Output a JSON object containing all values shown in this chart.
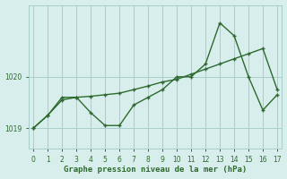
{
  "line1_x": [
    0,
    1,
    2,
    3,
    4,
    5,
    6,
    7,
    8,
    9,
    10,
    11,
    12,
    13,
    14,
    15,
    16,
    17
  ],
  "line1_y": [
    1019.0,
    1019.25,
    1019.55,
    1019.6,
    1019.62,
    1019.65,
    1019.68,
    1019.75,
    1019.82,
    1019.9,
    1019.95,
    1020.05,
    1020.15,
    1020.25,
    1020.35,
    1020.45,
    1020.55,
    1019.75
  ],
  "line2_x": [
    0,
    1,
    2,
    3,
    4,
    5,
    6,
    7,
    8,
    9,
    10,
    11,
    12,
    13,
    14,
    15,
    16,
    17
  ],
  "line2_y": [
    1019.0,
    1019.25,
    1019.6,
    1019.6,
    1019.3,
    1019.05,
    1019.05,
    1019.45,
    1019.6,
    1019.75,
    1020.0,
    1020.0,
    1020.25,
    1021.05,
    1020.8,
    1020.0,
    1019.35,
    1019.65
  ],
  "bg_color": "#d8eeed",
  "line_color": "#2d6a2d",
  "grid_color": "#a8cece",
  "ylabel_ticks": [
    1019,
    1020
  ],
  "xlabel_ticks": [
    0,
    1,
    2,
    3,
    4,
    5,
    6,
    7,
    8,
    9,
    10,
    11,
    12,
    13,
    14,
    15,
    16,
    17
  ],
  "xlabel": "Graphe pression niveau de la mer (hPa)",
  "ylim": [
    1018.6,
    1021.4
  ],
  "xlim": [
    -0.3,
    17.3
  ]
}
